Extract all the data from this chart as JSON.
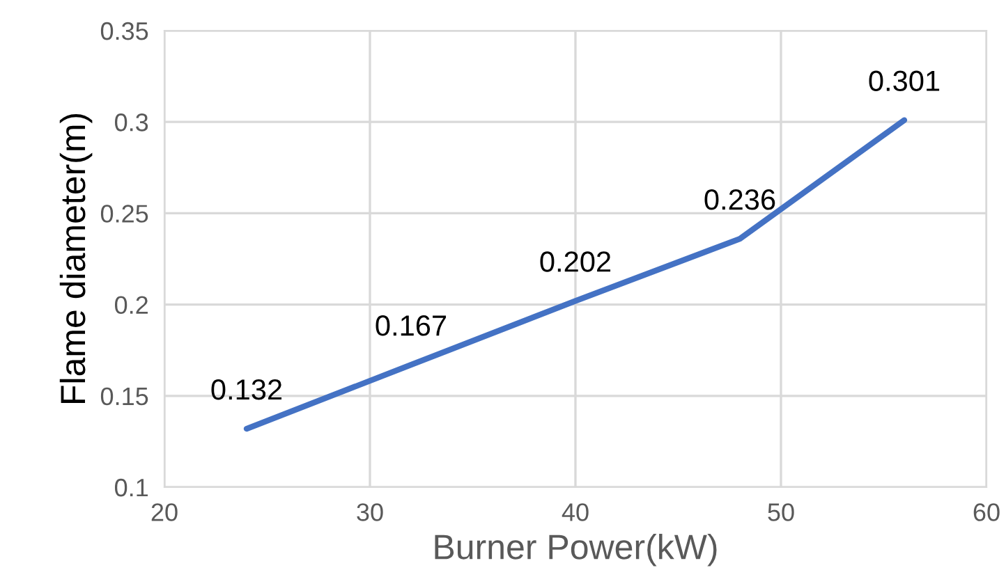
{
  "chart_data": {
    "type": "line",
    "xlabel": "Burner Power(kW)",
    "ylabel": "Flame diameter(m)",
    "x": [
      24,
      32,
      40,
      48,
      56
    ],
    "series": [
      {
        "color": "#4472c4",
        "values": [
          0.132,
          0.167,
          0.202,
          0.236,
          0.301
        ]
      }
    ],
    "xlim": [
      20,
      60
    ],
    "xticks": [
      20,
      30,
      40,
      50,
      60
    ],
    "ylim": [
      0.1,
      0.35
    ],
    "yticks": [
      0.1,
      0.15,
      0.2,
      0.25,
      0.3,
      0.35
    ],
    "grid": true,
    "data_labels": true,
    "marker": "none",
    "line_style": "solid"
  }
}
